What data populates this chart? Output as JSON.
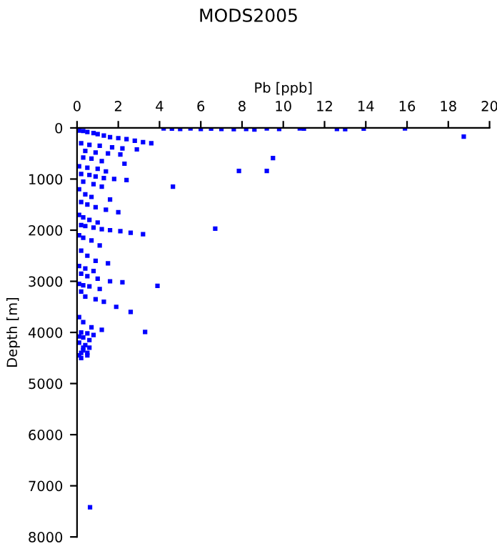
{
  "chart_data": {
    "type": "scatter",
    "title": "MODS2005",
    "xlabel": "Pb [ppb]",
    "ylabel": "Depth [m]",
    "xlim": [
      0,
      20
    ],
    "xticks": [
      0,
      2,
      4,
      6,
      8,
      10,
      12,
      14,
      16,
      18,
      20
    ],
    "ylim": [
      8000,
      0
    ],
    "yticks": [
      0,
      1000,
      2000,
      3000,
      4000,
      5000,
      6000,
      7000,
      8000
    ],
    "marker": "square",
    "grid": false,
    "series": [
      {
        "color": "#0000ff",
        "x": [
          4.2,
          4.6,
          5.0,
          5.5,
          6.0,
          6.5,
          7.0,
          7.6,
          8.2,
          8.6,
          9.2,
          9.8,
          10.8,
          11.0,
          12.6,
          13.0,
          13.9,
          15.9,
          18.75,
          9.5,
          7.85,
          9.2,
          4.65,
          6.7,
          3.9,
          3.3,
          0.63,
          0.1,
          0.3,
          0.5,
          0.8,
          1.0,
          1.3,
          1.6,
          2.0,
          2.4,
          2.8,
          3.2,
          3.6,
          0.2,
          0.6,
          1.1,
          1.7,
          2.2,
          2.9,
          0.4,
          0.9,
          1.5,
          2.1,
          0.3,
          0.7,
          1.2,
          2.3,
          0.1,
          0.5,
          1.0,
          1.4,
          0.2,
          0.6,
          0.9,
          1.3,
          1.8,
          2.4,
          0.3,
          0.8,
          1.2,
          0.1,
          0.4,
          0.7,
          1.6,
          0.2,
          0.5,
          0.9,
          1.4,
          2.0,
          0.1,
          0.3,
          0.6,
          1.0,
          0.2,
          0.4,
          0.8,
          1.2,
          1.6,
          2.1,
          2.6,
          3.2,
          0.1,
          0.3,
          0.7,
          1.1,
          0.2,
          0.5,
          0.9,
          1.5,
          0.1,
          0.4,
          0.8,
          0.2,
          0.5,
          1.0,
          1.6,
          2.2,
          0.1,
          0.3,
          0.6,
          1.1,
          0.2,
          0.4,
          0.9,
          1.3,
          1.9,
          2.6,
          0.1,
          0.3,
          0.7,
          1.2,
          0.2,
          0.5,
          0.8,
          0.1,
          0.3,
          0.6,
          0.1,
          0.4,
          0.6,
          0.3,
          0.2,
          0.5,
          0.2,
          0.5,
          0.3,
          0.1
        ],
        "values": [
          10,
          15,
          20,
          10,
          20,
          15,
          20,
          25,
          20,
          30,
          10,
          20,
          10,
          15,
          20,
          25,
          15,
          10,
          170,
          590,
          840,
          840,
          1150,
          1970,
          3090,
          3990,
          7420,
          50,
          60,
          80,
          100,
          120,
          150,
          180,
          200,
          220,
          250,
          280,
          300,
          300,
          330,
          350,
          380,
          400,
          420,
          450,
          480,
          500,
          520,
          580,
          600,
          650,
          700,
          750,
          780,
          800,
          850,
          900,
          920,
          950,
          980,
          1000,
          1020,
          1050,
          1100,
          1150,
          1200,
          1300,
          1350,
          1400,
          1450,
          1500,
          1550,
          1600,
          1650,
          1700,
          1750,
          1800,
          1850,
          1900,
          1920,
          1950,
          1980,
          2000,
          2020,
          2050,
          2080,
          2100,
          2150,
          2200,
          2300,
          2400,
          2500,
          2600,
          2650,
          2700,
          2750,
          2800,
          2850,
          2900,
          2950,
          3000,
          3020,
          3050,
          3080,
          3100,
          3150,
          3200,
          3300,
          3350,
          3400,
          3500,
          3600,
          3700,
          3800,
          3900,
          3950,
          4000,
          4020,
          4050,
          4080,
          4100,
          4150,
          4200,
          4250,
          4300,
          4350,
          4400,
          4450,
          4500,
          4400,
          4300,
          4450
        ]
      }
    ]
  }
}
